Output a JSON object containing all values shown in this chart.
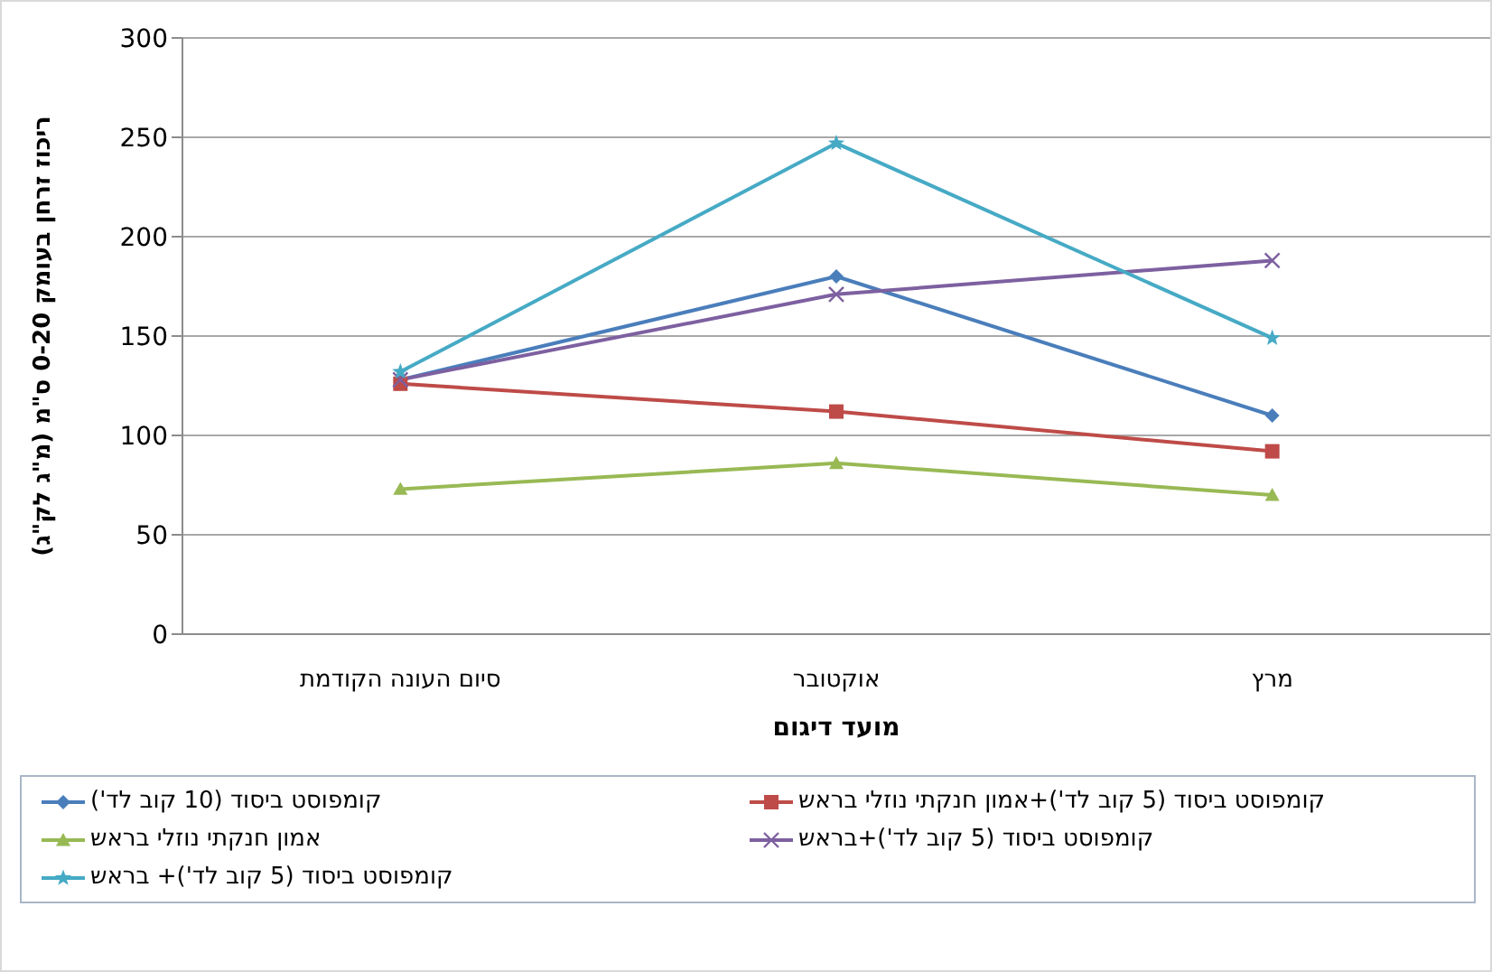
{
  "chart_data": {
    "type": "line",
    "xlabel": "מועד דיגום",
    "ylabel": "ריכוז זרחן בעומק 0-20 ס\"מ (מ\"ג לק\"ג)",
    "categories": [
      "סיום העונה הקודמת",
      "אוקטובר",
      "מרץ"
    ],
    "ylim": [
      0,
      300
    ],
    "yticks": [
      0,
      50,
      100,
      150,
      200,
      250,
      300
    ],
    "grid": "y",
    "legend": "bottom",
    "series": [
      {
        "name": "קומפוסט ביסוד (10 קוב לד')",
        "color": "#4a7ebb",
        "marker": "diamond",
        "values": [
          128,
          180,
          110
        ]
      },
      {
        "name": "קומפוסט ביסוד (5 קוב לד')+אמון חנקתי נוזלי בראש",
        "color": "#be4b48",
        "marker": "square",
        "values": [
          126,
          112,
          92
        ]
      },
      {
        "name": "אמון חנקתי נוזלי בראש",
        "color": "#98b954",
        "marker": "triangle",
        "values": [
          73,
          86,
          70
        ]
      },
      {
        "name": "קומפוסט ביסוד (5 קוב לד')+בראש",
        "color": "#7d60a0",
        "marker": "cross",
        "values": [
          128,
          171,
          188
        ]
      },
      {
        "name": "קומפוסט ביסוד (5 קוב לד')+ בראש",
        "color": "#46aac5",
        "marker": "star",
        "values": [
          132,
          247,
          149
        ]
      }
    ]
  }
}
